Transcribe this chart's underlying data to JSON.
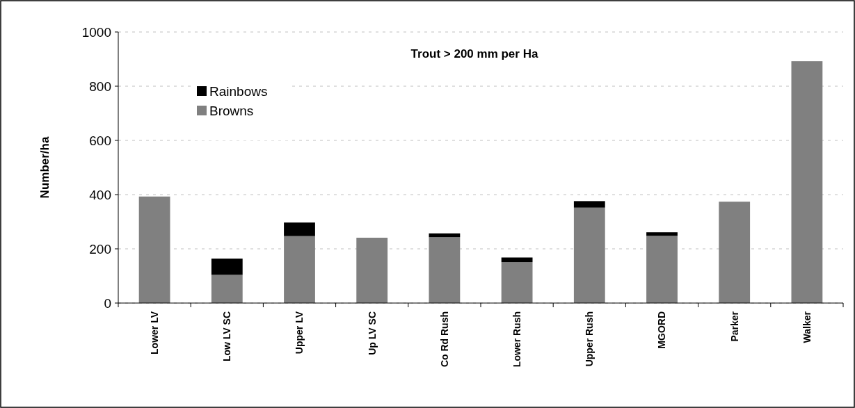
{
  "chart_data": {
    "type": "bar",
    "title": "Trout > 200 mm per Ha",
    "ylabel": "Number/ha",
    "categories": [
      "Lower LV",
      "Low LV SC",
      "Upper LV",
      "Up LV SC",
      "Co Rd Rush",
      "Lower Rush",
      "Upper Rush",
      "MGORD",
      "Parker",
      "Walker"
    ],
    "series": [
      {
        "name": "Browns",
        "color": "#808080",
        "values": [
          393,
          104,
          247,
          241,
          243,
          151,
          352,
          248,
          374,
          892
        ]
      },
      {
        "name": "Rainbows",
        "color": "#000000",
        "values": [
          0,
          60,
          50,
          0,
          14,
          17,
          24,
          13,
          0,
          0
        ]
      }
    ],
    "stacked": true,
    "ylim": [
      0,
      1000
    ],
    "yticks": [
      0,
      200,
      400,
      600,
      800,
      1000
    ],
    "grid": "y",
    "legend": "top left"
  }
}
